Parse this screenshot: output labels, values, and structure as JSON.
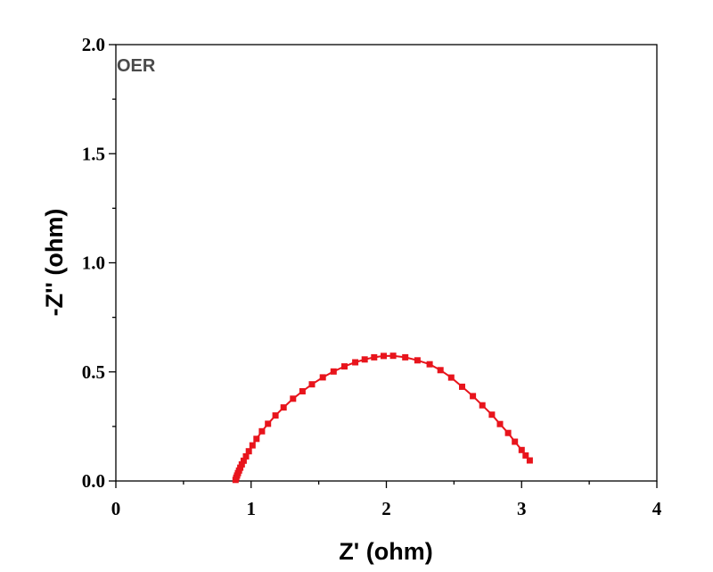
{
  "chart_data": {
    "type": "scatter",
    "title": "",
    "xlabel": "Z' (ohm)",
    "ylabel": "-Z'' (ohm)",
    "xlim": [
      0,
      4
    ],
    "ylim": [
      0,
      2.0
    ],
    "x_ticks": [
      0,
      1,
      2,
      3,
      4
    ],
    "x_tick_labels": [
      "0",
      "1",
      "2",
      "3",
      "4"
    ],
    "y_ticks": [
      0,
      0.5,
      1.0,
      1.5,
      2.0
    ],
    "y_tick_labels": [
      "0.0",
      "0.5",
      "1.0",
      "1.5",
      "2.0"
    ],
    "annotation": "OER",
    "grid": false,
    "series": [
      {
        "color": "#e8141c",
        "marker": "square",
        "connected": true,
        "points": [
          [
            0.885,
            0.005
          ],
          [
            0.89,
            0.015
          ],
          [
            0.896,
            0.025
          ],
          [
            0.903,
            0.036
          ],
          [
            0.911,
            0.048
          ],
          [
            0.92,
            0.061
          ],
          [
            0.931,
            0.076
          ],
          [
            0.945,
            0.093
          ],
          [
            0.962,
            0.113
          ],
          [
            0.983,
            0.136
          ],
          [
            1.01,
            0.163
          ],
          [
            1.04,
            0.193
          ],
          [
            1.08,
            0.228
          ],
          [
            1.125,
            0.262
          ],
          [
            1.18,
            0.3
          ],
          [
            1.24,
            0.337
          ],
          [
            1.31,
            0.377
          ],
          [
            1.38,
            0.411
          ],
          [
            1.45,
            0.443
          ],
          [
            1.53,
            0.475
          ],
          [
            1.61,
            0.502
          ],
          [
            1.69,
            0.525
          ],
          [
            1.77,
            0.544
          ],
          [
            1.84,
            0.557
          ],
          [
            1.91,
            0.567
          ],
          [
            1.98,
            0.573
          ],
          [
            2.05,
            0.574
          ],
          [
            2.14,
            0.567
          ],
          [
            2.23,
            0.553
          ],
          [
            2.32,
            0.535
          ],
          [
            2.4,
            0.508
          ],
          [
            2.48,
            0.474
          ],
          [
            2.56,
            0.432
          ],
          [
            2.64,
            0.389
          ],
          [
            2.71,
            0.347
          ],
          [
            2.78,
            0.304
          ],
          [
            2.84,
            0.261
          ],
          [
            2.9,
            0.22
          ],
          [
            2.95,
            0.18
          ],
          [
            3.0,
            0.142
          ],
          [
            3.03,
            0.117
          ],
          [
            3.06,
            0.094
          ]
        ]
      }
    ]
  }
}
